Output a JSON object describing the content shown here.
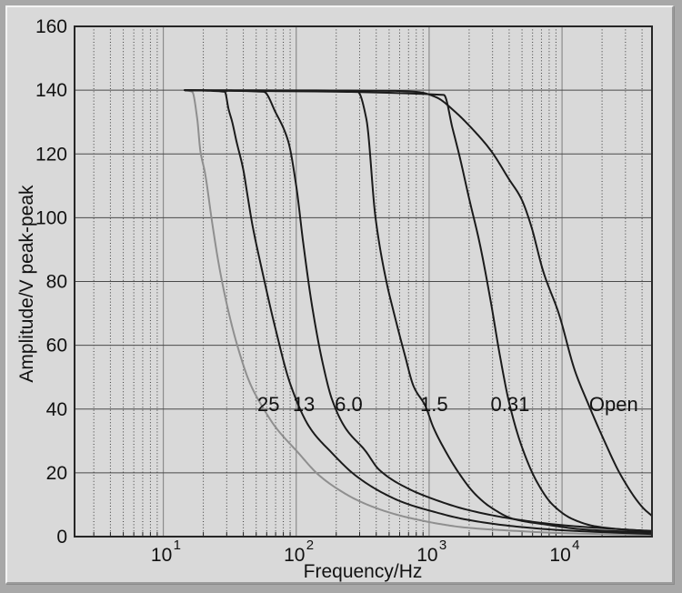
{
  "frame": {
    "background": "#a8a8a8",
    "panel_background": "#d9d9d9",
    "bevel_highlight": "#f4f4f4",
    "bevel_shadow": "#9a9a9a"
  },
  "chart_data": {
    "type": "line",
    "title": "",
    "xlabel": "Frequency/Hz",
    "ylabel": "Amplitude/V peak-peak",
    "x_scale": "log",
    "xlim": [
      2.15,
      47500
    ],
    "ylim": [
      0,
      160
    ],
    "grid": {
      "horizontal": "solid",
      "vertical_major": "solid",
      "vertical_minor": "dotted"
    },
    "yticks": [
      {
        "value": 0,
        "label": "0"
      },
      {
        "value": 20,
        "label": "20"
      },
      {
        "value": 40,
        "label": "40"
      },
      {
        "value": 60,
        "label": "60"
      },
      {
        "value": 80,
        "label": "80"
      },
      {
        "value": 100,
        "label": "100"
      },
      {
        "value": 120,
        "label": "120"
      },
      {
        "value": 140,
        "label": "140"
      },
      {
        "value": 160,
        "label": "160"
      }
    ],
    "xticks": [
      {
        "value": 10,
        "mantissa": "10",
        "exponent": "1"
      },
      {
        "value": 100,
        "mantissa": "10",
        "exponent": "2"
      },
      {
        "value": 1000,
        "mantissa": "10",
        "exponent": "3"
      },
      {
        "value": 10000,
        "mantissa": "10",
        "exponent": "4"
      }
    ],
    "colors": {
      "curve_dark": "#1b1b1b",
      "curve_gray": "#8f8f8f",
      "grid_horizontal": "#4a4a4a",
      "grid_decade": "#8c8c8c",
      "grid_minor": "#3c3c3c",
      "plot_border": "#262626",
      "text": "#111111"
    },
    "series": [
      {
        "name": "25",
        "label": "25",
        "label_f": 51,
        "color": "#8f8f8f",
        "width": 2,
        "points": [
          [
            14.5,
            140
          ],
          [
            16.5,
            139.5
          ],
          [
            18,
            131
          ],
          [
            19,
            121
          ],
          [
            20.6,
            114
          ],
          [
            23.4,
            98
          ],
          [
            26,
            86
          ],
          [
            30,
            73
          ],
          [
            36,
            60
          ],
          [
            45,
            48
          ],
          [
            57,
            40
          ],
          [
            70,
            34.3
          ],
          [
            102,
            26.6
          ],
          [
            147,
            19.4
          ],
          [
            202,
            15.1
          ],
          [
            289,
            11.4
          ],
          [
            421,
            8.6
          ],
          [
            604,
            6.6
          ],
          [
            866,
            5.1
          ],
          [
            1190,
            4
          ],
          [
            1820,
            2.9
          ],
          [
            4000,
            1.9
          ],
          [
            10000,
            1.1
          ],
          [
            47500,
            0.5
          ]
        ]
      },
      {
        "name": "13",
        "label": "13",
        "label_f": 94,
        "color": "#1b1b1b",
        "width": 2,
        "points": [
          [
            14.5,
            140
          ],
          [
            29,
            139.5
          ],
          [
            31,
            134
          ],
          [
            33,
            130
          ],
          [
            35.5,
            124
          ],
          [
            40,
            115
          ],
          [
            43,
            107
          ],
          [
            46.7,
            98
          ],
          [
            55,
            84
          ],
          [
            70,
            65
          ],
          [
            90,
            48
          ],
          [
            126,
            34.3
          ],
          [
            185,
            26.3
          ],
          [
            275,
            19.4
          ],
          [
            421,
            14.3
          ],
          [
            650,
            10.6
          ],
          [
            1040,
            8
          ],
          [
            1820,
            5.5
          ],
          [
            4000,
            3.4
          ],
          [
            10000,
            2
          ],
          [
            47500,
            0.8
          ]
        ]
      },
      {
        "name": "6.0",
        "label": "6.0",
        "label_f": 195,
        "color": "#1b1b1b",
        "width": 2,
        "points": [
          [
            14.5,
            140
          ],
          [
            57,
            139.5
          ],
          [
            70,
            133
          ],
          [
            87,
            124
          ],
          [
            100,
            110
          ],
          [
            113,
            92
          ],
          [
            132,
            72
          ],
          [
            159,
            54
          ],
          [
            186,
            43
          ],
          [
            235,
            34
          ],
          [
            330,
            27
          ],
          [
            420,
            21
          ],
          [
            700,
            15
          ],
          [
            1040,
            12
          ],
          [
            1900,
            8.5
          ],
          [
            4200,
            5.6
          ],
          [
            10000,
            3.6
          ],
          [
            47500,
            1.7
          ]
        ]
      },
      {
        "name": "1.5",
        "label": "1.5",
        "label_f": 855,
        "color": "#1b1b1b",
        "width": 2,
        "points": [
          [
            14.5,
            140
          ],
          [
            290,
            139.5
          ],
          [
            337,
            131
          ],
          [
            395,
            100
          ],
          [
            477,
            80
          ],
          [
            540,
            70.6
          ],
          [
            655,
            57.1
          ],
          [
            765,
            47.1
          ],
          [
            938,
            40.9
          ],
          [
            1075,
            34.3
          ],
          [
            1320,
            27
          ],
          [
            1670,
            20
          ],
          [
            2200,
            13.5
          ],
          [
            2930,
            9.1
          ],
          [
            4330,
            5.5
          ],
          [
            7500,
            3.8
          ],
          [
            15000,
            2.2
          ],
          [
            47500,
            1.3
          ]
        ]
      },
      {
        "name": "0.31",
        "label": "0.31",
        "label_f": 2900,
        "color": "#1b1b1b",
        "width": 2,
        "points": [
          [
            14.5,
            140
          ],
          [
            1290,
            138.5
          ],
          [
            1500,
            128
          ],
          [
            1700,
            119
          ],
          [
            2000,
            106
          ],
          [
            2400,
            92
          ],
          [
            2900,
            74
          ],
          [
            3400,
            57
          ],
          [
            4000,
            42
          ],
          [
            5000,
            28
          ],
          [
            6500,
            17
          ],
          [
            8500,
            10
          ],
          [
            12000,
            5.5
          ],
          [
            18000,
            3.2
          ],
          [
            30000,
            2.2
          ],
          [
            47500,
            1.8
          ]
        ]
      },
      {
        "name": "Open",
        "label": "Open",
        "label_f": 16000,
        "color": "#1b1b1b",
        "width": 2,
        "points": [
          [
            14.5,
            140
          ],
          [
            500,
            139.8
          ],
          [
            830,
            139.4
          ],
          [
            1140,
            137.7
          ],
          [
            1550,
            133.4
          ],
          [
            2130,
            127.7
          ],
          [
            2920,
            121
          ],
          [
            4000,
            112
          ],
          [
            4930,
            106
          ],
          [
            5800,
            98
          ],
          [
            7240,
            83
          ],
          [
            9440,
            70
          ],
          [
            12500,
            52
          ],
          [
            15600,
            42
          ],
          [
            20300,
            31
          ],
          [
            27900,
            19
          ],
          [
            40700,
            9
          ],
          [
            47500,
            6.5
          ]
        ]
      }
    ]
  }
}
